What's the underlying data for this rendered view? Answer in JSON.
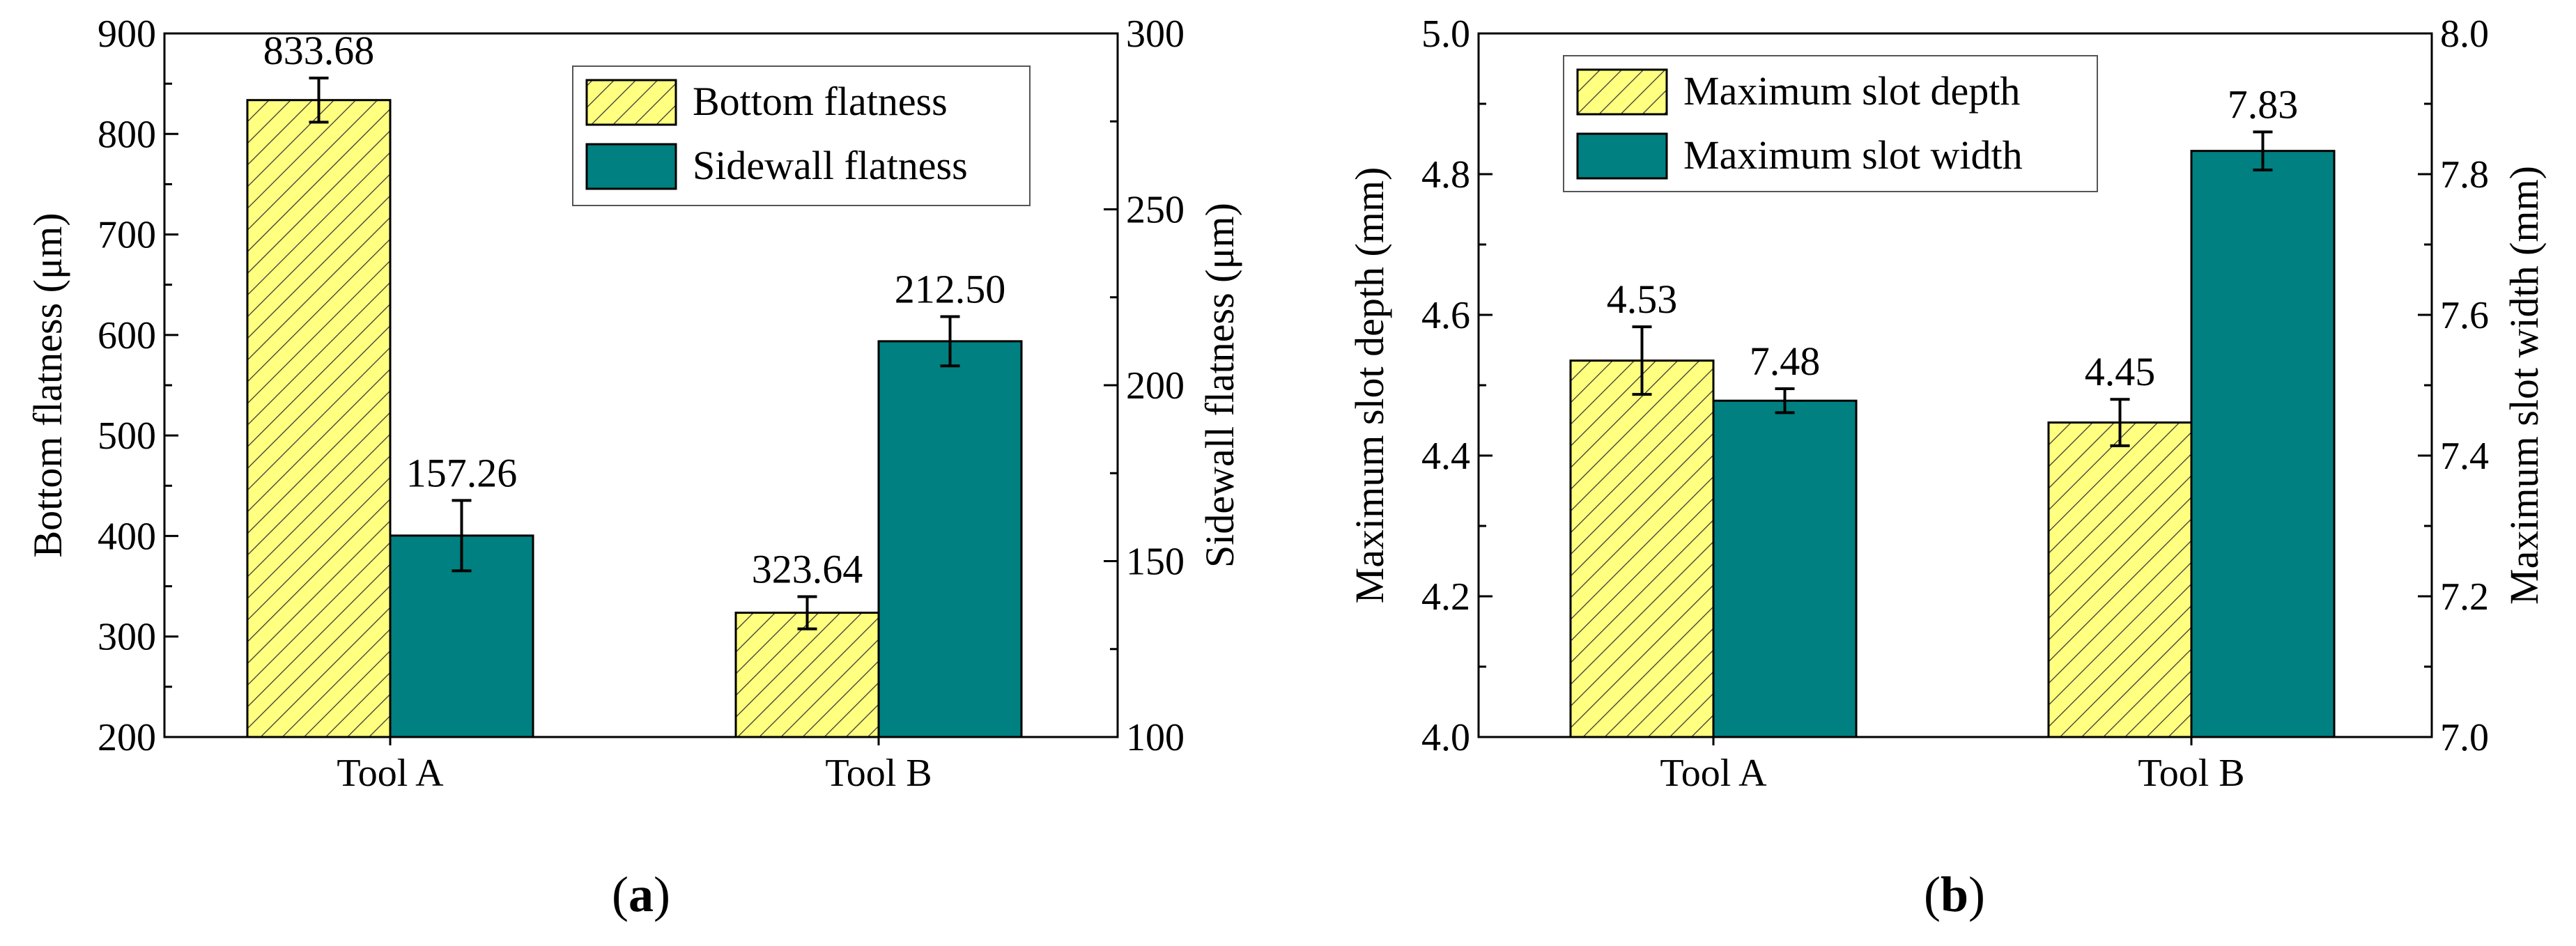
{
  "colors": {
    "hatch_fill": "#ffff80",
    "hatch_line": "#333333",
    "teal": "#008080"
  },
  "chart_data": [
    {
      "type": "bar",
      "panel_label": "a",
      "categories": [
        "Tool A",
        "Tool B"
      ],
      "left_axis": {
        "label": "Bottom flatness (μm)",
        "ylim": [
          200,
          900
        ],
        "ticks": [
          "200",
          "300",
          "400",
          "500",
          "600",
          "700",
          "800",
          "900"
        ]
      },
      "right_axis": {
        "label": "Sidewall flatness (μm)",
        "ylim": [
          100,
          300
        ],
        "ticks": [
          "100",
          "150",
          "200",
          "250",
          "300"
        ]
      },
      "legend_position": "top-right",
      "series": [
        {
          "name": "Bottom flatness",
          "axis": "left",
          "style": "hatched",
          "values": [
            833.68,
            323.64
          ],
          "errors": [
            22,
            16
          ],
          "labels": [
            "833.68",
            "323.64"
          ]
        },
        {
          "name": "Sidewall flatness",
          "axis": "right",
          "style": "solid",
          "values": [
            157.26,
            212.5
          ],
          "errors": [
            10,
            7
          ],
          "labels": [
            "157.26",
            "212.50"
          ]
        }
      ]
    },
    {
      "type": "bar",
      "panel_label": "b",
      "categories": [
        "Tool A",
        "Tool B"
      ],
      "left_axis": {
        "label": "Maximum slot depth (mm)",
        "ylim": [
          4.0,
          5.0
        ],
        "ticks": [
          "4.0",
          "4.2",
          "4.4",
          "4.6",
          "4.8",
          "5.0"
        ]
      },
      "right_axis": {
        "label": "Maximum slot width (mm)",
        "ylim": [
          7.0,
          8.0
        ],
        "ticks": [
          "7.0",
          "7.2",
          "7.4",
          "7.6",
          "7.8",
          "8.0"
        ]
      },
      "legend_position": "top-left",
      "series": [
        {
          "name": "Maximum slot depth",
          "axis": "left",
          "style": "hatched",
          "values": [
            4.535,
            4.447
          ],
          "errors": [
            0.048,
            0.033
          ],
          "labels": [
            "4.53",
            "4.45"
          ]
        },
        {
          "name": "Maximum slot width",
          "axis": "right",
          "style": "solid",
          "values": [
            7.478,
            7.833
          ],
          "errors": [
            0.017,
            0.027
          ],
          "labels": [
            "7.48",
            "7.83"
          ]
        }
      ]
    }
  ]
}
